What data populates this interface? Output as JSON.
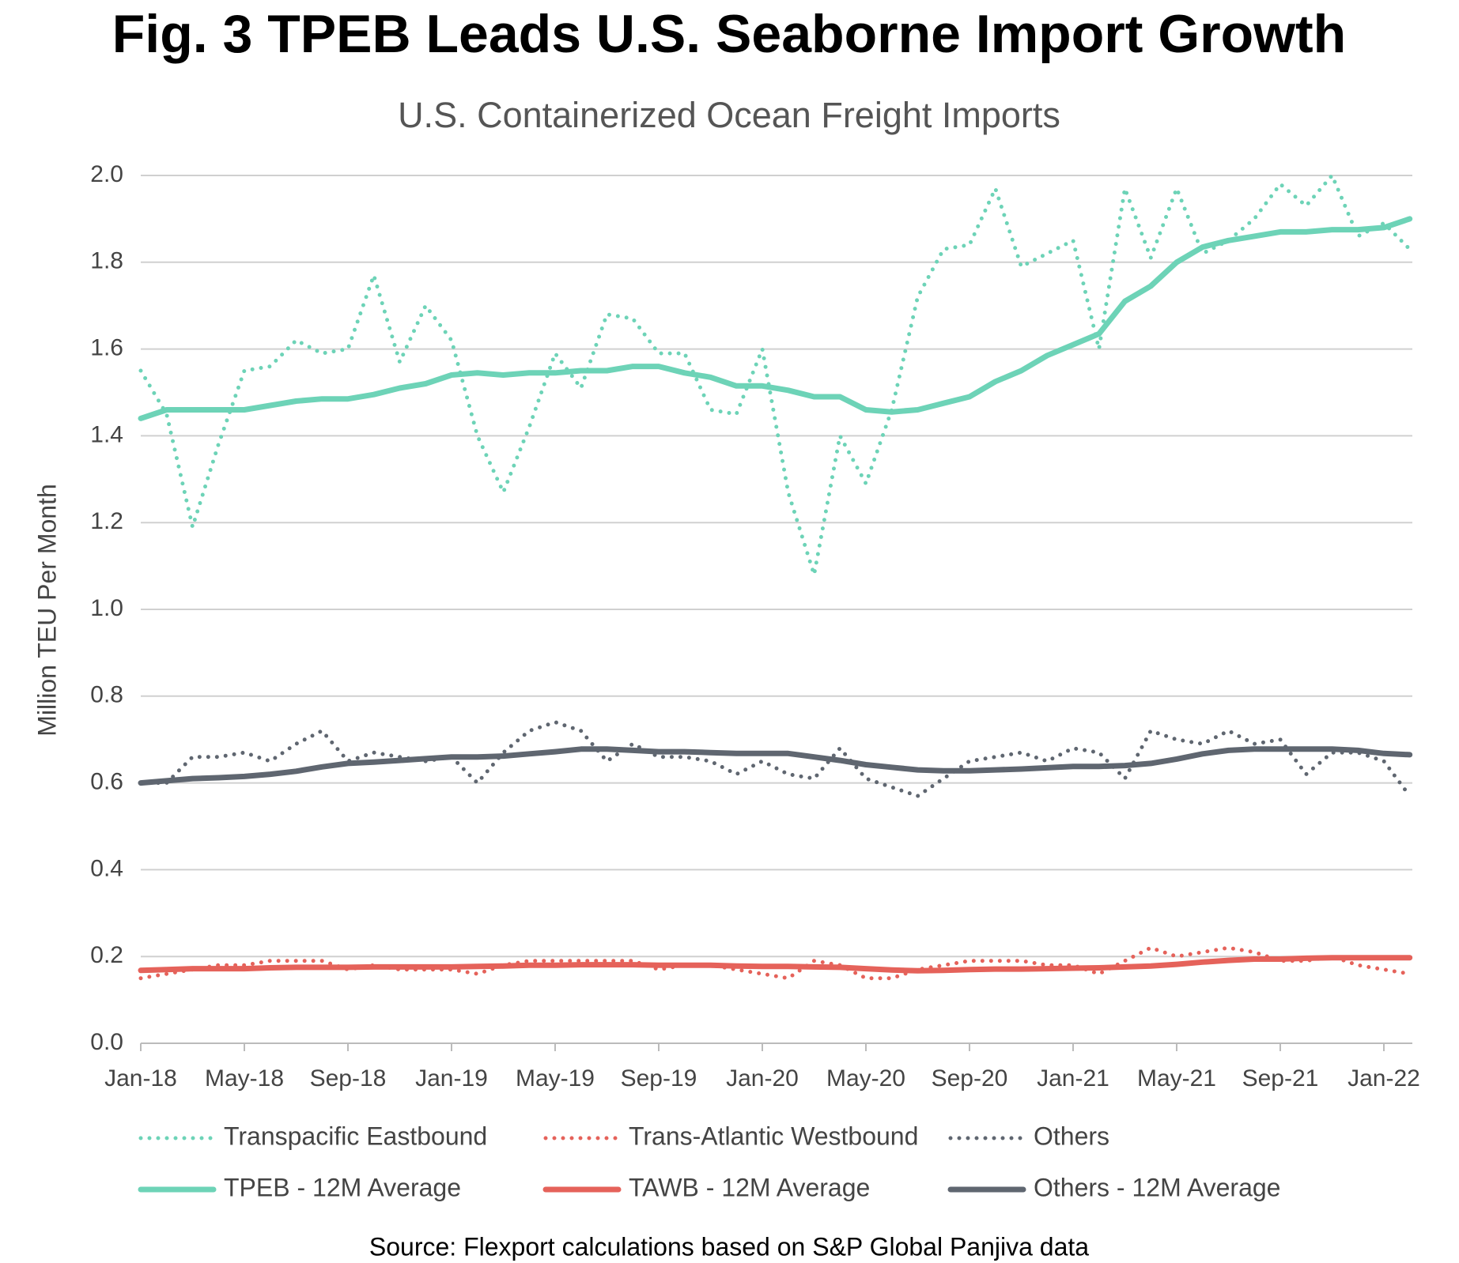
{
  "chart_data": {
    "type": "line",
    "title": "Fig. 3 TPEB Leads U.S. Seaborne Import Growth",
    "subtitle": "U.S. Containerized Ocean Freight Imports",
    "y_label": "Million TEU Per Month",
    "source": "Source: Flexport calculations based on S&P Global Panjiva data",
    "categories": [
      "Jan-18",
      null,
      null,
      null,
      "May-18",
      null,
      null,
      null,
      "Sep-18",
      null,
      null,
      null,
      "Jan-19",
      null,
      null,
      null,
      "May-19",
      null,
      null,
      null,
      "Sep-19",
      null,
      null,
      null,
      "Jan-20",
      null,
      null,
      null,
      "May-20",
      null,
      null,
      null,
      "Sep-20",
      null,
      null,
      null,
      "Jan-21",
      null,
      null,
      null,
      "May-21",
      null,
      null,
      null,
      "Sep-21",
      null,
      null,
      null,
      "Jan-22",
      null
    ],
    "ylim": [
      0,
      2
    ],
    "yticks": [
      {
        "value": 0,
        "label": "0.0"
      },
      0.2,
      0.4,
      0.6,
      0.8,
      {
        "value": 1,
        "label": "1.0"
      },
      1.2,
      1.4,
      1.6,
      1.8,
      {
        "value": 2,
        "label": "2.0"
      }
    ],
    "grid": true,
    "series": [
      {
        "name": "Transpacific Eastbound",
        "color": "#6dd3b7",
        "style": "dotted",
        "values": [
          1.55,
          1.45,
          1.19,
          1.38,
          1.55,
          1.56,
          1.62,
          1.59,
          1.6,
          1.77,
          1.57,
          1.7,
          1.62,
          1.4,
          1.27,
          1.42,
          1.59,
          1.51,
          1.68,
          1.67,
          1.59,
          1.59,
          1.46,
          1.45,
          1.6,
          1.27,
          1.08,
          1.4,
          1.29,
          1.46,
          1.72,
          1.83,
          1.84,
          1.97,
          1.79,
          1.82,
          1.85,
          1.6,
          1.97,
          1.81,
          1.97,
          1.82,
          1.85,
          1.9,
          1.98,
          1.93,
          2.0,
          1.86,
          1.89,
          1.83
        ]
      },
      {
        "name": "Trans-Atlantic Westbound",
        "color": "#e5625a",
        "style": "dotted",
        "values": [
          0.15,
          0.16,
          0.17,
          0.18,
          0.18,
          0.19,
          0.19,
          0.19,
          0.17,
          0.18,
          0.17,
          0.17,
          0.17,
          0.16,
          0.18,
          0.19,
          0.19,
          0.19,
          0.19,
          0.19,
          0.17,
          0.18,
          0.18,
          0.17,
          0.16,
          0.15,
          0.19,
          0.18,
          0.15,
          0.15,
          0.17,
          0.18,
          0.19,
          0.19,
          0.19,
          0.18,
          0.18,
          0.16,
          0.19,
          0.22,
          0.2,
          0.21,
          0.22,
          0.21,
          0.19,
          0.19,
          0.2,
          0.18,
          0.17,
          0.16
        ]
      },
      {
        "name": "Others",
        "color": "#5f6670",
        "style": "dotted",
        "values": [
          0.6,
          0.6,
          0.66,
          0.66,
          0.67,
          0.65,
          0.69,
          0.72,
          0.65,
          0.67,
          0.66,
          0.65,
          0.66,
          0.6,
          0.67,
          0.72,
          0.74,
          0.72,
          0.65,
          0.69,
          0.66,
          0.66,
          0.65,
          0.62,
          0.65,
          0.62,
          0.61,
          0.68,
          0.61,
          0.59,
          0.57,
          0.61,
          0.65,
          0.66,
          0.67,
          0.65,
          0.68,
          0.67,
          0.61,
          0.72,
          0.7,
          0.69,
          0.72,
          0.69,
          0.7,
          0.62,
          0.67,
          0.67,
          0.65,
          0.57
        ]
      },
      {
        "name": "TPEB - 12M Average",
        "color": "#6dd3b7",
        "style": "solid",
        "values": [
          1.44,
          1.46,
          1.46,
          1.46,
          1.46,
          1.47,
          1.48,
          1.485,
          1.485,
          1.495,
          1.51,
          1.52,
          1.54,
          1.545,
          1.54,
          1.545,
          1.545,
          1.55,
          1.55,
          1.56,
          1.56,
          1.545,
          1.535,
          1.515,
          1.515,
          1.505,
          1.49,
          1.49,
          1.46,
          1.455,
          1.46,
          1.475,
          1.49,
          1.525,
          1.55,
          1.585,
          1.61,
          1.635,
          1.71,
          1.745,
          1.8,
          1.835,
          1.85,
          1.86,
          1.87,
          1.87,
          1.875,
          1.875,
          1.88,
          1.9
        ]
      },
      {
        "name": "TAWB - 12M Average",
        "color": "#e5625a",
        "style": "solid",
        "values": [
          0.168,
          0.17,
          0.172,
          0.172,
          0.172,
          0.174,
          0.175,
          0.175,
          0.175,
          0.176,
          0.176,
          0.176,
          0.176,
          0.177,
          0.178,
          0.18,
          0.18,
          0.181,
          0.181,
          0.181,
          0.18,
          0.18,
          0.18,
          0.178,
          0.177,
          0.177,
          0.176,
          0.175,
          0.172,
          0.169,
          0.167,
          0.168,
          0.17,
          0.171,
          0.171,
          0.172,
          0.173,
          0.174,
          0.176,
          0.178,
          0.182,
          0.187,
          0.191,
          0.194,
          0.194,
          0.196,
          0.197,
          0.197,
          0.197,
          0.197
        ]
      },
      {
        "name": "Others - 12M Average",
        "color": "#5f6670",
        "style": "solid",
        "values": [
          0.6,
          0.605,
          0.61,
          0.612,
          0.615,
          0.62,
          0.627,
          0.637,
          0.645,
          0.648,
          0.652,
          0.656,
          0.66,
          0.66,
          0.662,
          0.667,
          0.672,
          0.678,
          0.678,
          0.675,
          0.672,
          0.672,
          0.67,
          0.668,
          0.668,
          0.668,
          0.66,
          0.652,
          0.642,
          0.636,
          0.63,
          0.628,
          0.628,
          0.63,
          0.632,
          0.635,
          0.638,
          0.638,
          0.64,
          0.645,
          0.655,
          0.667,
          0.675,
          0.678,
          0.678,
          0.678,
          0.678,
          0.675,
          0.668,
          0.665
        ]
      }
    ]
  }
}
